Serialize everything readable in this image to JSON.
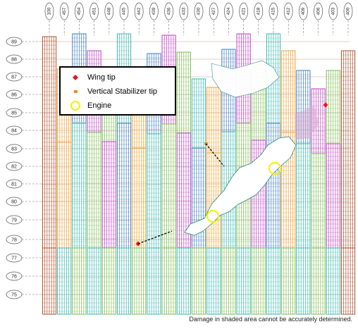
{
  "column_labels": [
    "400",
    "403",
    "406",
    "409",
    "412",
    "415",
    "418",
    "421",
    "424",
    "427",
    "430",
    "433",
    "436",
    "439",
    "442",
    "445",
    "448",
    "451",
    "454",
    "457",
    "100"
  ],
  "row_labels": [
    "89",
    "88",
    "87",
    "86",
    "85",
    "84",
    "83",
    "82",
    "81",
    "80",
    "79",
    "78",
    "77",
    "76",
    "75"
  ],
  "legend": {
    "items": [
      {
        "label": "Wing tip",
        "symbol": "diamond",
        "color": "#e0181c"
      },
      {
        "label": "Vertical Stabilizer tip",
        "symbol": "square",
        "color": "#f08a1c"
      },
      {
        "label": "Engine",
        "symbol": "circle",
        "color": "#f4f000"
      }
    ]
  },
  "note": "Damage in shaded area cannot be accurately determined.",
  "colors": {
    "blue": "#3f7fc2",
    "teal": "#39b8b0",
    "green": "#7dbd50",
    "orange": "#f0a030",
    "magenta": "#c23fc8",
    "brown": "#b0502a"
  }
}
